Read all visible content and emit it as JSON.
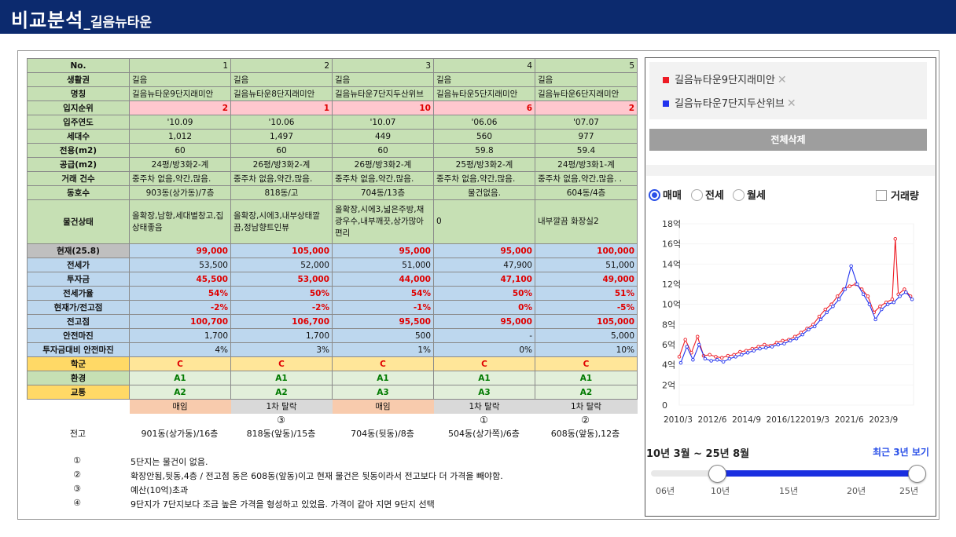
{
  "header": {
    "title": "비교분석",
    "subtitle": "_길음뉴타운"
  },
  "table": {
    "header_label": "No.",
    "columns": [
      "1",
      "2",
      "3",
      "4",
      "5"
    ],
    "rows": [
      {
        "label": "생활권",
        "values": [
          "길음",
          "길음",
          "길음",
          "길음",
          "길음"
        ]
      },
      {
        "label": "명칭",
        "values": [
          "길음뉴타운9단지래미안",
          "길음뉴타운8단지래미안",
          "길음뉴타운7단지두산위브",
          "길음뉴타운5단지래미안",
          "길음뉴타운6단지래미안"
        ]
      },
      {
        "label": "입지순위",
        "values": [
          "2",
          "1",
          "10",
          "6",
          "2"
        ]
      },
      {
        "label": "입주연도",
        "values": [
          "'10.09",
          "'10.06",
          "'10.07",
          "'06.06",
          "'07.07"
        ]
      },
      {
        "label": "세대수",
        "values": [
          "1,012",
          "1,497",
          "449",
          "560",
          "977"
        ]
      },
      {
        "label": "전용(m2)",
        "values": [
          "60",
          "60",
          "60",
          "59.8",
          "59.4"
        ]
      },
      {
        "label": "공급(m2)",
        "values": [
          "24평/방3화2-계",
          "26평/방3화2-계",
          "26평/방3화2-계",
          "25평/방3화2-계",
          "24평/방3화1-계"
        ]
      },
      {
        "label": "거래 건수",
        "values": [
          "중주차 없음,약간,많음.",
          "중주차 없음,약간,많음.",
          "중주차 없음,약간,많음.",
          "중주차 없음,약간,많음.",
          "중주차 없음,약간,많음. ."
        ]
      },
      {
        "label": "동호수",
        "values": [
          "903동(상가동)/7층",
          "818동/고",
          "704동/13층",
          "물건없음.",
          "604동/4층"
        ]
      },
      {
        "label": "물건상태",
        "values": [
          "올확장,남향,세대별창고,집상태좋음",
          "올확장,시에3,내부상태깔끔,정남향트인뷰",
          "올확장,시에3,넓은주방,채광우수,내부깨끗,상가많아편리",
          "0",
          "내부깔끔 화장실2"
        ]
      },
      {
        "label": "현재(25.8)",
        "values": [
          "99,000",
          "105,000",
          "95,000",
          "95,000",
          "100,000"
        ]
      },
      {
        "label": "전세가",
        "values": [
          "53,500",
          "52,000",
          "51,000",
          "47,900",
          "51,000"
        ]
      },
      {
        "label": "투자금",
        "values": [
          "45,500",
          "53,000",
          "44,000",
          "47,100",
          "49,000"
        ]
      },
      {
        "label": "전세가율",
        "values": [
          "54%",
          "50%",
          "54%",
          "50%",
          "51%"
        ]
      },
      {
        "label": "현재가/전고점",
        "values": [
          "-2%",
          "-2%",
          "-1%",
          "0%",
          "-5%"
        ]
      },
      {
        "label": "전고점",
        "values": [
          "100,700",
          "106,700",
          "95,500",
          "95,000",
          "105,000"
        ]
      },
      {
        "label": "안전마진",
        "values": [
          "1,700",
          "1,700",
          "500",
          "-",
          "5,000"
        ]
      },
      {
        "label": "투자금대비 안전마진",
        "values": [
          "4%",
          "3%",
          "1%",
          "0%",
          "10%"
        ]
      },
      {
        "label": "학군",
        "values": [
          "C",
          "C",
          "C",
          "C",
          "C"
        ]
      },
      {
        "label": "환경",
        "values": [
          "A1",
          "A1",
          "A1",
          "A1",
          "A1"
        ]
      },
      {
        "label": "교통",
        "values": [
          "A2",
          "A2",
          "A3",
          "A3",
          "A2"
        ]
      }
    ],
    "status": [
      "매임",
      "1차 탈락",
      "매임",
      "1차 탈락",
      "1차 탈락"
    ],
    "prev_high_label": "전고",
    "prev_high_marks": [
      "",
      "③",
      "",
      "①",
      "②"
    ],
    "prev_high_units": [
      "901동(상가동)/16층",
      "818동(앞동)/15층",
      "704동(뒷동)/8층",
      "504동(상가쪽)/6층",
      "608동(앞동),12층"
    ]
  },
  "notes": [
    {
      "mark": "①",
      "text": "5단지는 물건이 없음."
    },
    {
      "mark": "②",
      "text": "확장안됨,뒷동,4층 / 전고점 동은 608동(앞동)이고 현재 물건은 뒷동이라서 전고보다 더 가격을 빼야함."
    },
    {
      "mark": "③",
      "text": "예산(10억)초과"
    },
    {
      "mark": "④",
      "text": "9단지가 7단지보다 조금 높은 가격을 형성하고 있었음. 가격이 같아 지면 9단지 선택"
    }
  ],
  "panel": {
    "legend": [
      {
        "name": "길음뉴타운9단지래미안",
        "color": "#ee1c25"
      },
      {
        "name": "길음뉴타운7단지두산위브",
        "color": "#2233ee"
      }
    ],
    "remove_icon": "✕",
    "delete_all": "전체삭제",
    "radios": [
      "매매",
      "전세",
      "월세"
    ],
    "selected_radio": "매매",
    "volume_label": "거래량",
    "range_label": "10년 3월 ~ 25년 8월",
    "recent_label": "최근 3년 보기",
    "slider_ticks": [
      "06년",
      "10년",
      "15년",
      "20년",
      "25년"
    ],
    "slider_value": {
      "start": "10년",
      "end": "25년"
    }
  },
  "chart_data": {
    "type": "line",
    "ylabel": "",
    "yticks": [
      "0",
      "2억",
      "4억",
      "6억",
      "8억",
      "10억",
      "12억",
      "14억",
      "16억",
      "18억"
    ],
    "ylim": [
      0,
      18
    ],
    "xticks": [
      "2010/3",
      "2012/6",
      "2014/9",
      "2016/12",
      "2019/3",
      "2021/6",
      "2023/9"
    ],
    "xlim": [
      2010.2,
      2025.6
    ],
    "series": [
      {
        "name": "길음뉴타운9단지래미안",
        "color": "#ee1c25",
        "x": [
          2010.2,
          2010.6,
          2011.0,
          2011.4,
          2011.8,
          2012.2,
          2012.6,
          2013.0,
          2013.4,
          2013.8,
          2014.2,
          2014.6,
          2015.0,
          2015.4,
          2015.8,
          2016.2,
          2016.6,
          2017.0,
          2017.4,
          2017.8,
          2018.2,
          2018.6,
          2019.0,
          2019.4,
          2019.8,
          2020.2,
          2020.6,
          2021.0,
          2021.4,
          2021.8,
          2022.2,
          2022.6,
          2023.0,
          2023.4,
          2023.8,
          2024.2,
          2024.4,
          2024.6,
          2025.0,
          2025.4
        ],
        "y": [
          4.8,
          6.5,
          5.2,
          6.8,
          4.9,
          5.0,
          4.8,
          4.7,
          4.9,
          5.0,
          5.3,
          5.4,
          5.6,
          5.8,
          6.0,
          5.9,
          6.2,
          6.4,
          6.5,
          6.8,
          7.2,
          7.6,
          8.0,
          8.8,
          9.5,
          10.0,
          10.8,
          11.5,
          11.8,
          12.0,
          11.5,
          10.8,
          9.2,
          9.8,
          10.2,
          10.5,
          16.5,
          11.0,
          11.5,
          10.8
        ]
      },
      {
        "name": "길음뉴타운7단지두산위브",
        "color": "#2233ee",
        "x": [
          2010.3,
          2010.7,
          2011.1,
          2011.5,
          2011.9,
          2012.3,
          2012.7,
          2013.1,
          2013.5,
          2013.9,
          2014.3,
          2014.7,
          2015.1,
          2015.5,
          2015.9,
          2016.3,
          2016.7,
          2017.1,
          2017.5,
          2017.9,
          2018.3,
          2018.7,
          2019.1,
          2019.5,
          2019.9,
          2020.3,
          2020.7,
          2021.1,
          2021.5,
          2021.9,
          2022.3,
          2022.7,
          2023.1,
          2023.5,
          2023.9,
          2024.3,
          2024.7,
          2025.1,
          2025.5
        ],
        "y": [
          4.2,
          5.8,
          4.5,
          6.0,
          4.6,
          4.4,
          4.5,
          4.3,
          4.6,
          4.8,
          5.0,
          5.2,
          5.4,
          5.6,
          5.7,
          5.8,
          6.0,
          6.1,
          6.4,
          6.6,
          7.0,
          7.5,
          7.8,
          8.5,
          9.2,
          9.8,
          10.5,
          11.5,
          13.8,
          12.0,
          11.0,
          10.0,
          8.5,
          9.5,
          10.0,
          10.2,
          10.8,
          11.2,
          10.5
        ]
      }
    ]
  }
}
